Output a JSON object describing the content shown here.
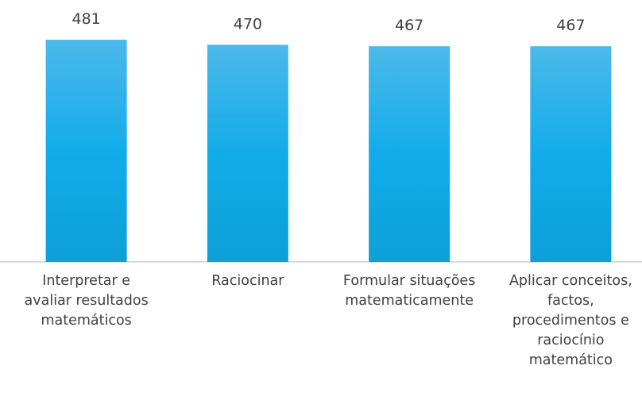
{
  "chart_data": {
    "type": "bar",
    "categories": [
      "Interpretar e\navaliar resultados\nmatemáticos",
      "Raciocinar",
      "Formular situações\nmatematicamente",
      "Aplicar conceitos,\nfactos,\nprocedimentos e\nraciocínio\nmatemático"
    ],
    "values": [
      481,
      470,
      467,
      467
    ],
    "color": "#1aaee6",
    "ylim": [
      0,
      500
    ]
  }
}
